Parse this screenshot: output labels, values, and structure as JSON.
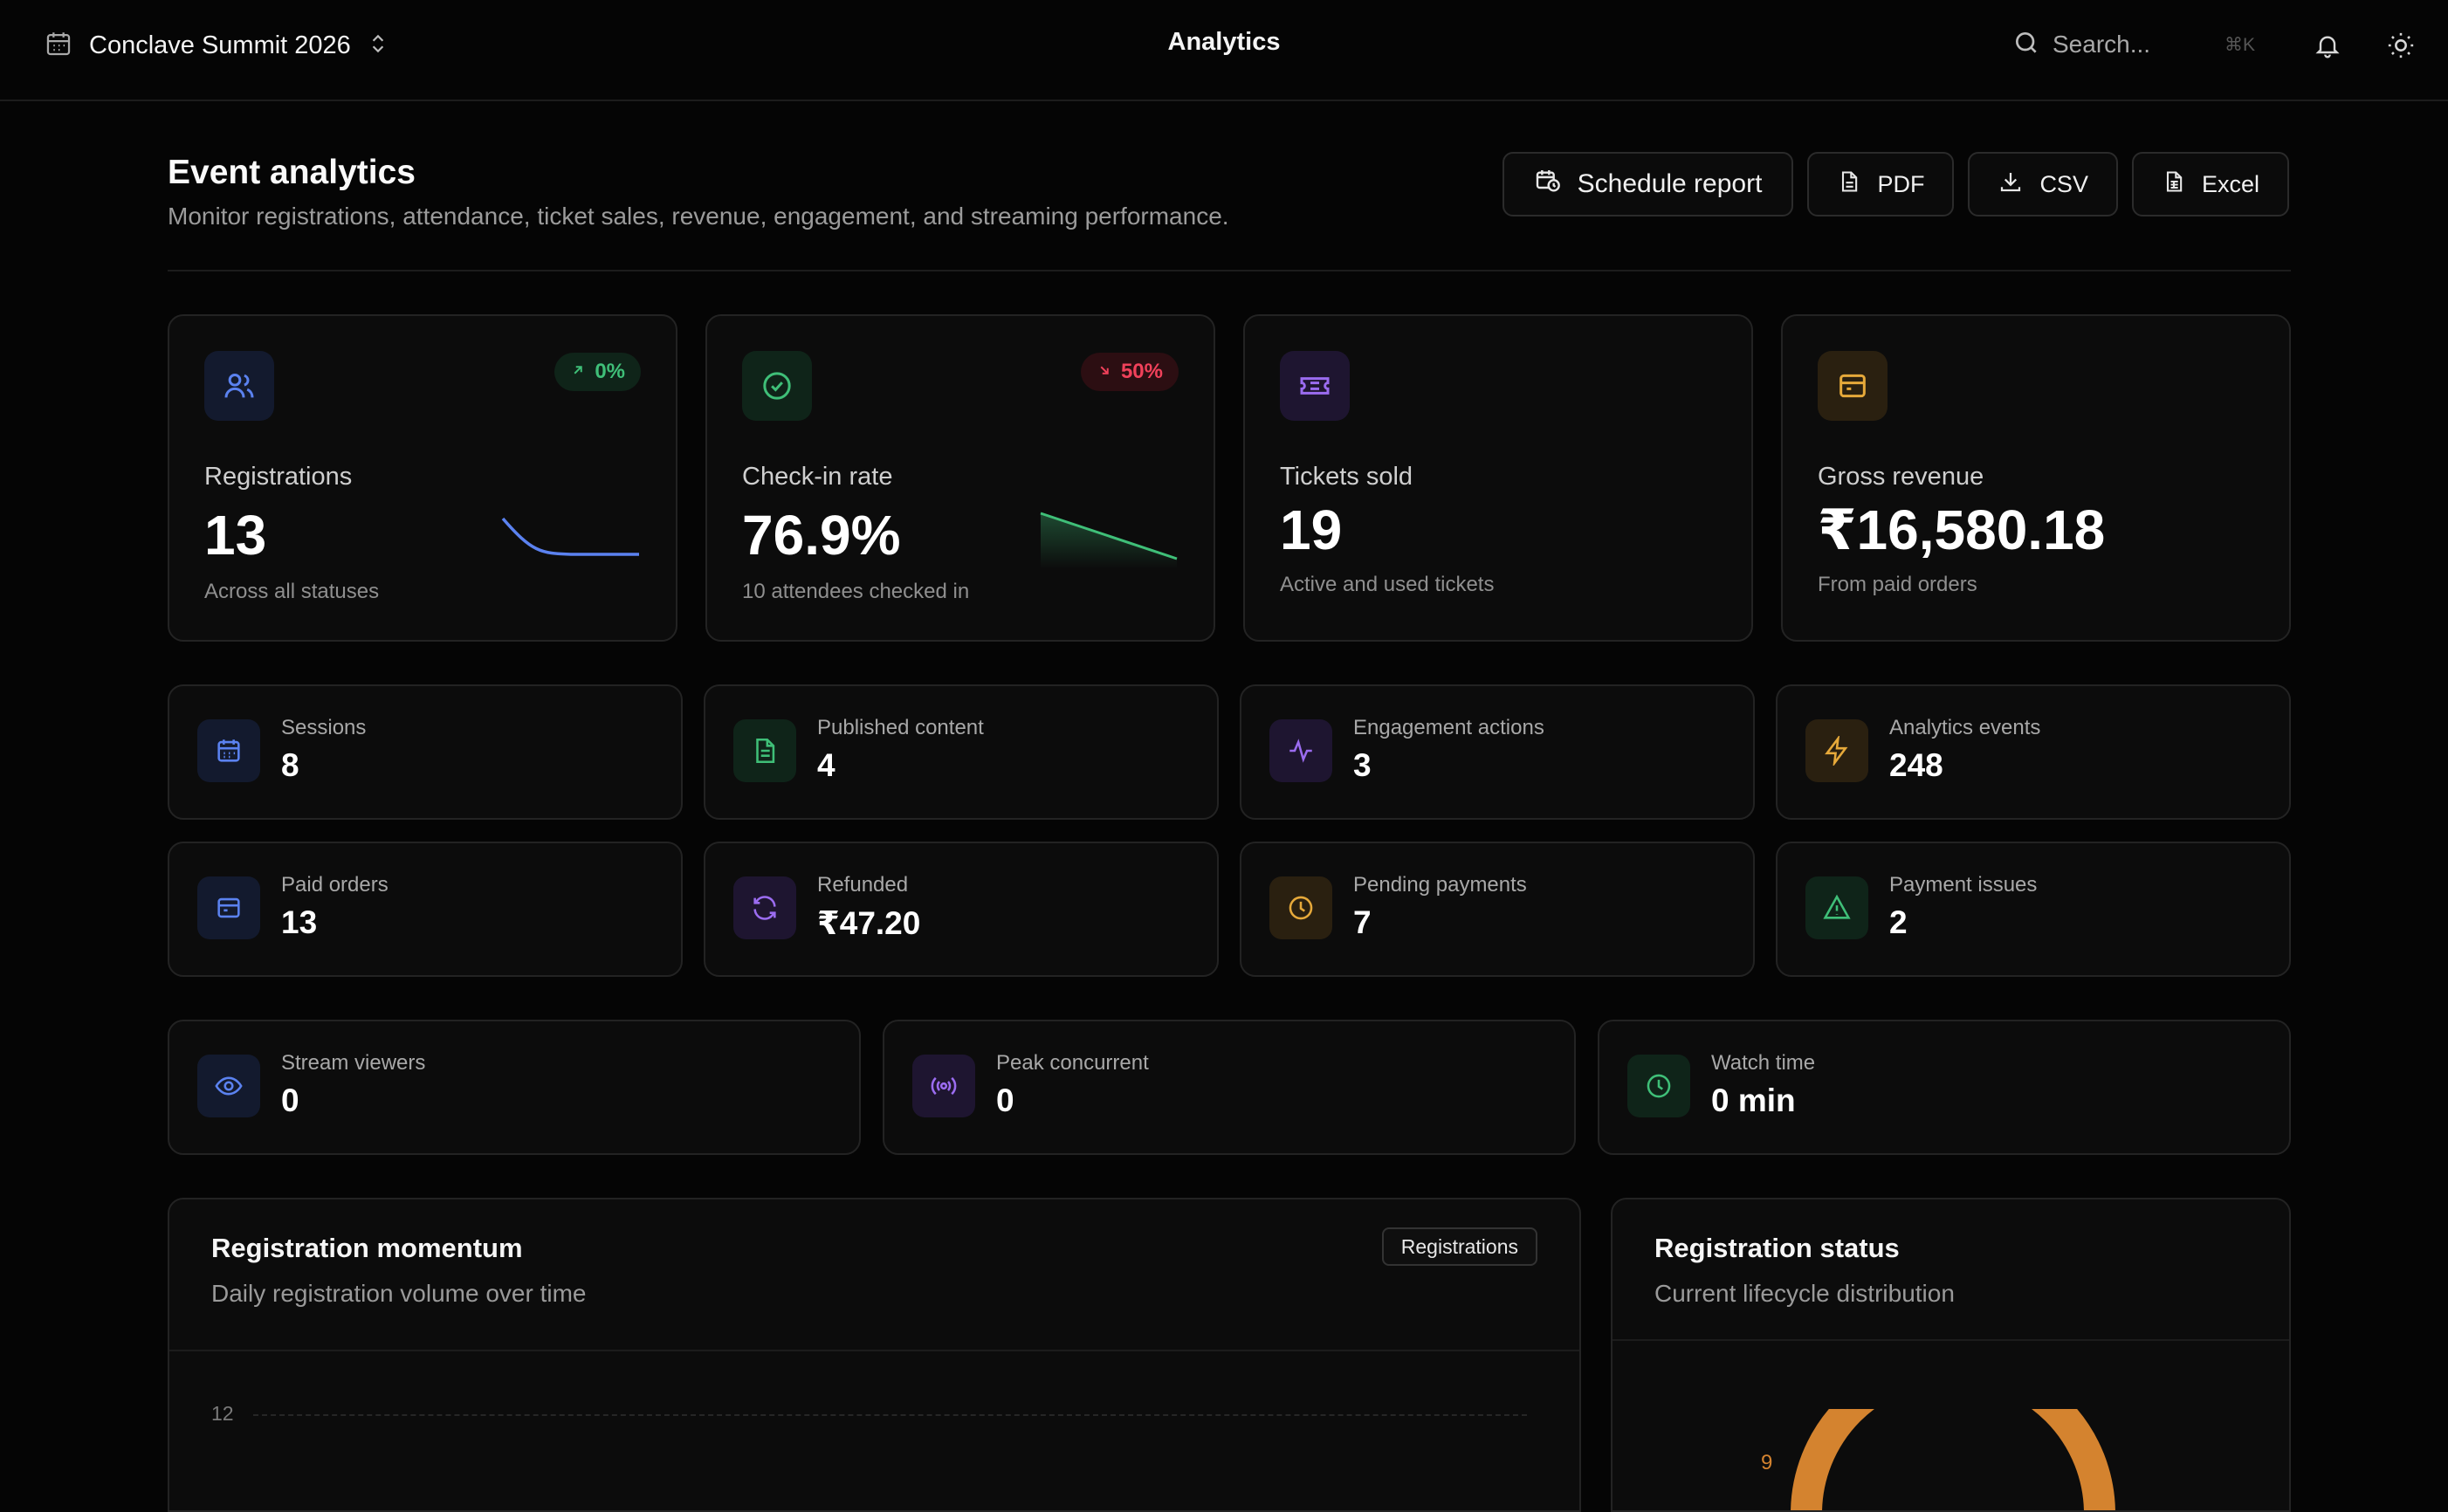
{
  "topbar": {
    "event_name": "Conclave Summit 2026",
    "page_name": "Analytics",
    "search_placeholder": "Search...",
    "search_shortcut": "⌘K"
  },
  "header": {
    "title": "Event analytics",
    "subtitle": "Monitor registrations, attendance, ticket sales, revenue, engagement, and streaming performance.",
    "actions": [
      "Schedule report",
      "PDF",
      "CSV",
      "Excel"
    ]
  },
  "kpis": [
    {
      "title": "Registrations",
      "value": "13",
      "sub": "Across all statuses",
      "badge": "0%",
      "trend": "up",
      "icon": "users-icon",
      "color": "#5b82f0"
    },
    {
      "title": "Check-in rate",
      "value": "76.9%",
      "sub": "10 attendees checked in",
      "badge": "50%",
      "trend": "down",
      "icon": "check-circle-icon",
      "color": "#3fbf78"
    },
    {
      "title": "Tickets sold",
      "value": "19",
      "sub": "Active and used tickets",
      "icon": "ticket-icon",
      "color": "#9b6cf0"
    },
    {
      "title": "Gross revenue",
      "value": "₹16,580.18",
      "sub": "From paid orders",
      "icon": "wallet-icon",
      "color": "#e6a93a"
    }
  ],
  "stats_row1": [
    {
      "label": "Sessions",
      "value": "8",
      "icon": "calendar-icon"
    },
    {
      "label": "Published content",
      "value": "4",
      "icon": "document-icon"
    },
    {
      "label": "Engagement actions",
      "value": "3",
      "icon": "activity-icon"
    },
    {
      "label": "Analytics events",
      "value": "248",
      "icon": "bolt-icon"
    }
  ],
  "stats_row2": [
    {
      "label": "Paid orders",
      "value": "13",
      "icon": "wallet-icon"
    },
    {
      "label": "Refunded",
      "value": "₹47.20",
      "icon": "refresh-icon"
    },
    {
      "label": "Pending payments",
      "value": "7",
      "icon": "clock-icon"
    },
    {
      "label": "Payment issues",
      "value": "2",
      "icon": "warning-icon"
    }
  ],
  "stream": [
    {
      "label": "Stream viewers",
      "value": "0",
      "icon": "eye-icon"
    },
    {
      "label": "Peak concurrent",
      "value": "0",
      "icon": "broadcast-icon"
    },
    {
      "label": "Watch time",
      "value": "0 min",
      "icon": "clock-icon"
    }
  ],
  "momentum": {
    "title": "Registration momentum",
    "subtitle": "Daily registration volume over time",
    "tag": "Registrations",
    "y_tick": "12"
  },
  "status": {
    "title": "Registration status",
    "subtitle": "Current lifecycle distribution",
    "label_value": "9"
  }
}
